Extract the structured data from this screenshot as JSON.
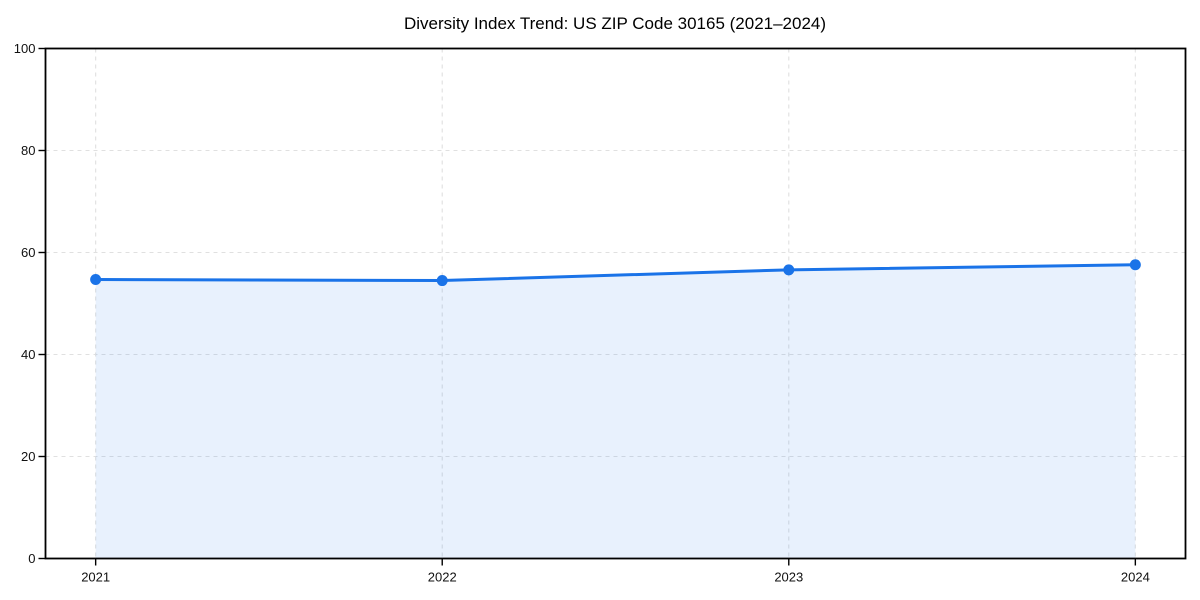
{
  "page": {
    "background_color": "#ffffff"
  },
  "chart_data": {
    "type": "area",
    "title": "Diversity Index Trend: US ZIP Code 30165 (2021–2024)",
    "x": [
      2021,
      2022,
      2023,
      2024
    ],
    "xtick_labels": [
      "2021",
      "2022",
      "2023",
      "2024"
    ],
    "series": [
      {
        "name": "Diversity Index",
        "values": [
          54.7,
          54.5,
          56.6,
          57.6
        ]
      }
    ],
    "xlabel": "",
    "ylabel": "",
    "ylim": [
      0,
      100
    ],
    "yticks": [
      0,
      20,
      40,
      60,
      80,
      100
    ],
    "ytick_labels": [
      "0",
      "20",
      "40",
      "60",
      "80",
      "100"
    ],
    "x_margin_fraction": 0.044,
    "grid": {
      "visible": true,
      "style": "dashed",
      "color": "#e0e0e0"
    },
    "legend": {
      "visible": false
    },
    "colors": {
      "line": "#1a73e8",
      "marker": "#1a73e8",
      "area_fill": "rgba(26,115,232,0.10)",
      "spine": "#000000",
      "tick_label": "#111111",
      "title": "#000000"
    },
    "marker": {
      "shape": "circle",
      "radius": 5.5
    },
    "line_width": 3
  }
}
